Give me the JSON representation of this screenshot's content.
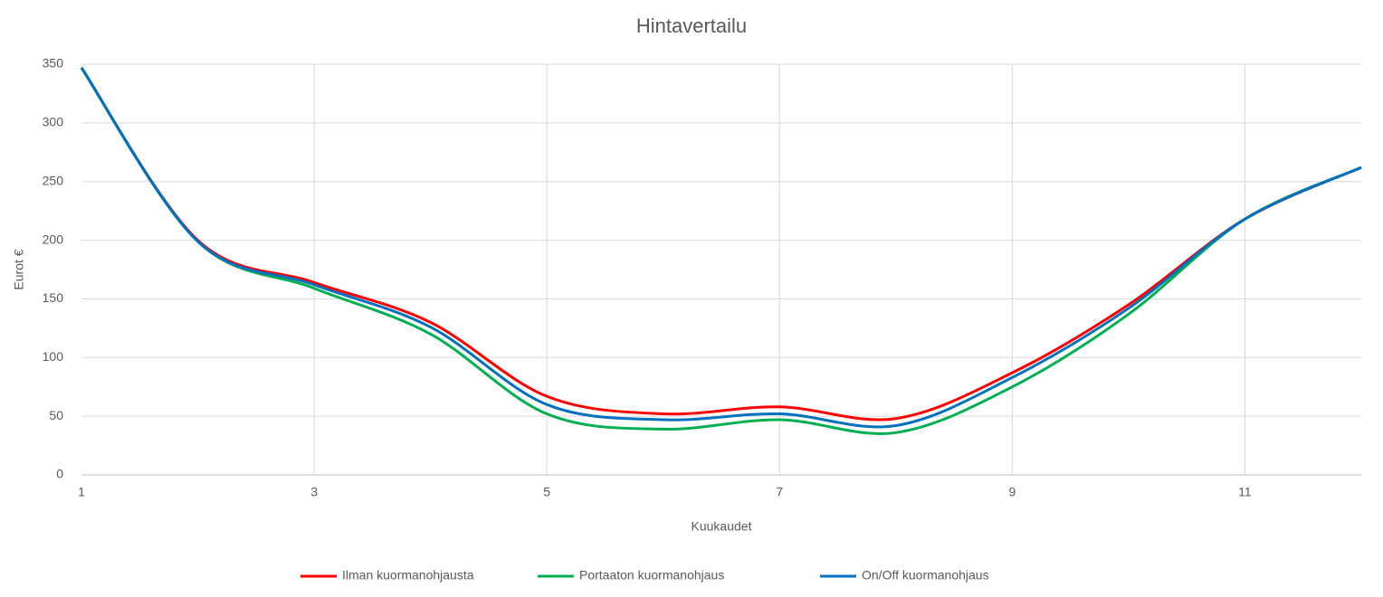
{
  "chart_data": {
    "type": "line",
    "title": "Hintavertailu",
    "x_label": "Kuukaudet",
    "y_label": "Eurot €",
    "x": [
      1,
      2,
      3,
      4,
      5,
      6,
      7,
      8,
      9,
      10,
      11,
      12
    ],
    "series": [
      {
        "name": "Ilman kuormanohjausta",
        "color": "#ff0000",
        "values": [
          347,
          200,
          164,
          130,
          67,
          52,
          58,
          48,
          87,
          145,
          218,
          262
        ]
      },
      {
        "name": "Portaaton kuormanohjaus",
        "color": "#00b050",
        "values": [
          347,
          199,
          159,
          120,
          52,
          39,
          47,
          36,
          75,
          137,
          218,
          262
        ]
      },
      {
        "name": "On/Off kuormanohjaus",
        "color": "#0070c0",
        "values": [
          347,
          199,
          162,
          126,
          60,
          47,
          52,
          42,
          83,
          142,
          218,
          262
        ]
      }
    ],
    "xlim": [
      1,
      12
    ],
    "xticks": [
      1,
      3,
      5,
      7,
      9,
      11
    ],
    "ylim": [
      0,
      350
    ],
    "yticks": [
      0,
      50,
      100,
      150,
      200,
      250,
      300,
      350
    ],
    "grid": true,
    "smooth": true,
    "legend": "bottom"
  }
}
